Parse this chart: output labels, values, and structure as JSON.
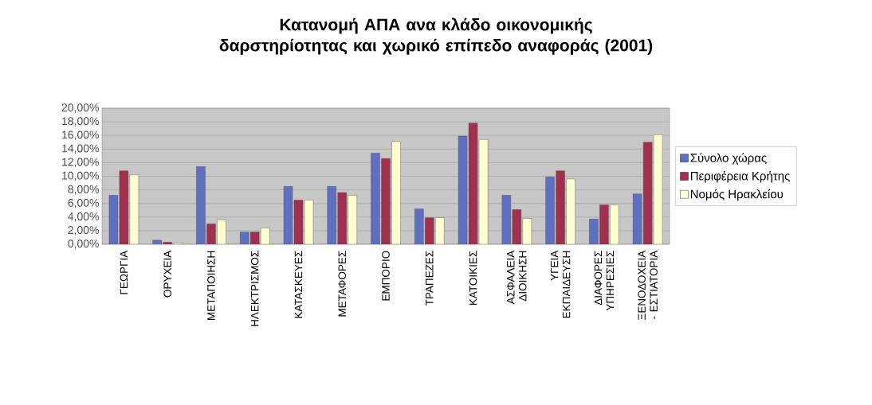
{
  "chart_data": {
    "type": "bar",
    "title": "Κατανομή ΑΠΑ ανα κλάδο οικονομικής δαρστηρίοτητας και χωρικό επίπεδο αναφοράς (2001)",
    "categories": [
      "ΓΕΩΡΓΙΑ",
      "ΟΡΥΧΕΙΑ",
      "ΜΕΤΑΠΟΙΗΣΗ",
      "ΗΛΕΚΤΡΙΣΜΟΣ",
      "ΚΑΤΑΣΚΕΥΕΣ",
      "ΜΕΤΑΦΟΡΕΣ",
      "ΕΜΠΟΡΙΟ",
      "ΤΡΑΠΕΖΕΣ",
      "ΚΑΤΟΙΚΙΕΣ",
      "ΑΣΦΑΛΕΙΑ ΔΙΟΙΚΗΣΗ",
      "ΥΓΕΙΑ ΕΚΠΑΙΔΕΥΣΗ",
      "ΔΙΑΦΟΡΕΣ ΥΠΗΡΕΣΙΕΣ",
      "ΞΕΝΟΔΟΧΕΙΑ - ΕΣΤΙΑΤΟΡΙΑ"
    ],
    "series": [
      {
        "name": "Σύνολο χώρας",
        "color": "#6070c0",
        "values": [
          7.2,
          0.6,
          11.4,
          1.8,
          8.5,
          8.5,
          13.4,
          5.2,
          15.9,
          7.2,
          9.9,
          3.7,
          7.4
        ]
      },
      {
        "name": "Περιφέρεια Κρήτης",
        "color": "#a03050",
        "values": [
          10.8,
          0.3,
          3.0,
          1.8,
          6.5,
          7.6,
          12.6,
          3.9,
          17.8,
          5.1,
          10.8,
          5.8,
          15.0
        ]
      },
      {
        "name": "Νομός Ηρακλείου",
        "color": "#ffffd0",
        "values": [
          10.2,
          0.2,
          3.6,
          2.4,
          6.5,
          7.2,
          15.1,
          3.9,
          15.4,
          3.8,
          9.6,
          5.8,
          16.1
        ]
      }
    ],
    "ylim": [
      0,
      20
    ],
    "yticks": [
      {
        "value": 0,
        "label": "0,00%"
      },
      {
        "value": 2,
        "label": "2,00%"
      },
      {
        "value": 4,
        "label": "4,00%"
      },
      {
        "value": 6,
        "label": "6,00%"
      },
      {
        "value": 8,
        "label": "8,00%"
      },
      {
        "value": 10,
        "label": "10,00%"
      },
      {
        "value": 12,
        "label": "12,00%"
      },
      {
        "value": 14,
        "label": "14,00%"
      },
      {
        "value": 16,
        "label": "16,00%"
      },
      {
        "value": 18,
        "label": "18,00%"
      },
      {
        "value": 20,
        "label": "20,00%"
      }
    ],
    "grid": "y",
    "legend": "right"
  }
}
